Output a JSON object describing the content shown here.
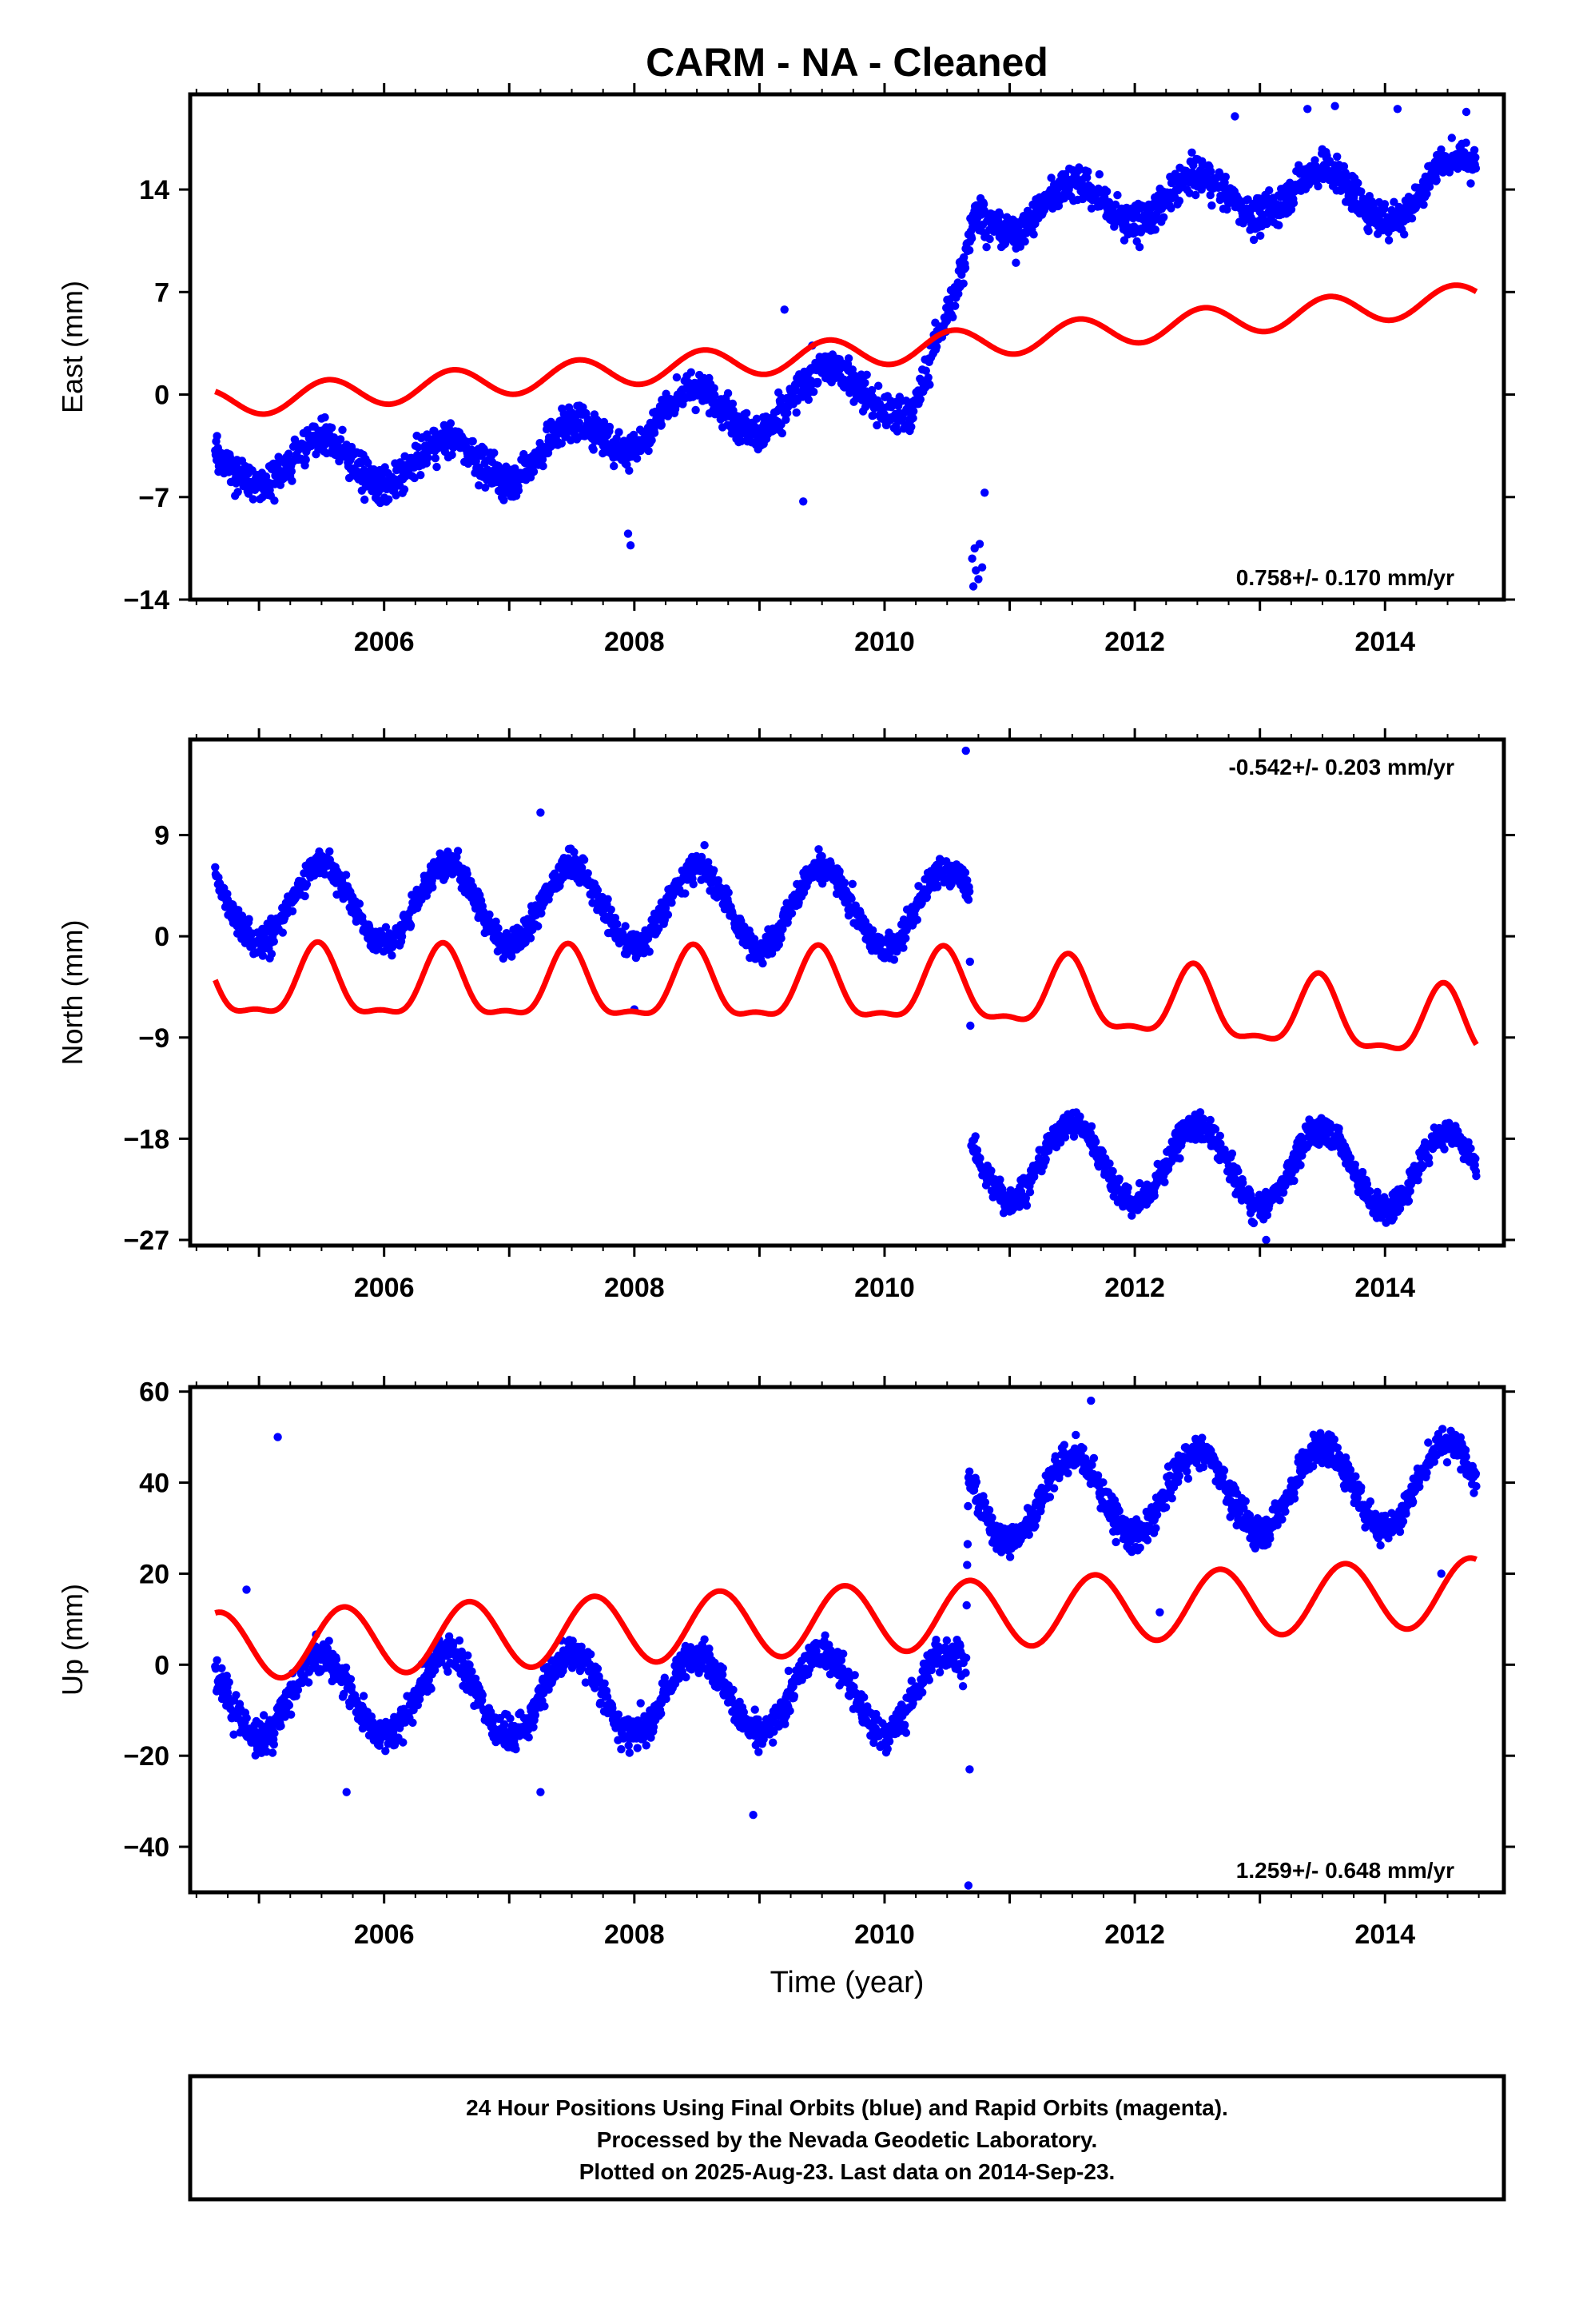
{
  "figure": {
    "title": "CARM  - NA - Cleaned",
    "xlabel": "Time (year)",
    "caption": [
      "24 Hour Positions Using Final Orbits (blue) and Rapid Orbits (magenta).",
      "Processed by the Nevada Geodetic Laboratory.",
      "Plotted on 2025-Aug-23. Last data on 2014-Sep-23."
    ]
  },
  "chart_data": [
    {
      "type": "scatter",
      "id": "east",
      "ylabel": "East (mm)",
      "xlim": [
        2004.45,
        2014.95
      ],
      "ylim": [
        -14,
        20.5
      ],
      "yticks": [
        14,
        7,
        0,
        -7,
        -14
      ],
      "xticks": [
        2006,
        2008,
        2010,
        2012,
        2014
      ],
      "rate_text": "0.758+/- 0.170 mm/yr",
      "rate_position": "bottom-right",
      "grid": false,
      "colors": {
        "points": "#0000ff",
        "model": "#ff0000"
      },
      "series": [
        {
          "kind": "daily-positions",
          "x_range": [
            2004.65,
            2014.73
          ],
          "anchors": [
            [
              2004.65,
              -4.8
            ],
            [
              2005.3,
              -4.5
            ],
            [
              2006.0,
              -4.7
            ],
            [
              2007.0,
              -4.4
            ],
            [
              2007.9,
              -2.6
            ],
            [
              2008.2,
              -1.0
            ],
            [
              2009.0,
              -1.2
            ],
            [
              2009.8,
              1.1
            ],
            [
              2010.25,
              -0.8
            ],
            [
              2010.58,
              5.5
            ],
            [
              2010.72,
              12.3
            ],
            [
              2011.5,
              13.0
            ],
            [
              2012.5,
              13.4
            ],
            [
              2013.5,
              14.0
            ],
            [
              2014.2,
              13.2
            ],
            [
              2014.73,
              15.5
            ]
          ],
          "seasonal_amplitude": 1.5,
          "scatter": 1.2,
          "outliers": [
            [
              2010.72,
              -10.5
            ],
            [
              2010.7,
              -11.2
            ],
            [
              2010.73,
              -12.0
            ],
            [
              2010.75,
              -12.6
            ],
            [
              2010.71,
              -13.1
            ],
            [
              2010.78,
              -11.8
            ],
            [
              2010.76,
              -10.2
            ],
            [
              2010.8,
              -6.7
            ],
            [
              2009.2,
              5.8
            ],
            [
              2007.95,
              -9.5
            ],
            [
              2007.97,
              -10.3
            ],
            [
              2013.38,
              19.5
            ],
            [
              2013.6,
              19.7
            ],
            [
              2014.1,
              19.5
            ],
            [
              2014.65,
              19.3
            ],
            [
              2012.8,
              19.0
            ],
            [
              2009.35,
              -7.3
            ],
            [
              2011.05,
              9.0
            ]
          ]
        },
        {
          "kind": "model",
          "anchors": [
            [
              2004.65,
              -0.6
            ],
            [
              2010.7,
              3.5
            ],
            [
              2014.73,
              6.6
            ]
          ],
          "seasonal_amplitude": 1.0,
          "peak_phase": 0.55
        }
      ]
    },
    {
      "type": "scatter",
      "id": "north",
      "ylabel": "North (mm)",
      "xlim": [
        2004.45,
        2014.95
      ],
      "ylim": [
        -27.5,
        17.5
      ],
      "yticks": [
        9,
        0,
        -9,
        -18,
        -27
      ],
      "xticks": [
        2006,
        2008,
        2010,
        2012,
        2014
      ],
      "rate_text": "-0.542+/- 0.203 mm/yr",
      "rate_position": "top-right",
      "grid": false,
      "colors": {
        "points": "#0000ff",
        "model": "#ff0000"
      },
      "series": [
        {
          "kind": "daily-positions",
          "x_range": [
            2004.65,
            2014.73
          ],
          "anchors": [
            [
              2004.65,
              3.0
            ],
            [
              2010.68,
              2.4
            ],
            [
              2010.69,
              -19.8
            ],
            [
              2014.73,
              -21.0
            ]
          ],
          "seasonal_amplitude": 3.5,
          "scatter": 1.2,
          "outliers": [
            [
              2010.65,
              16.5
            ],
            [
              2007.25,
              11.0
            ],
            [
              2013.05,
              -27.0
            ],
            [
              2012.95,
              -25.5
            ],
            [
              2008.0,
              -6.5
            ]
          ]
        },
        {
          "kind": "model",
          "anchors": [
            [
              2004.65,
              -4.5
            ],
            [
              2010.68,
              -4.9
            ],
            [
              2014.73,
              -8.4
            ]
          ],
          "seasonal_amplitude": 3.0,
          "peak_phase": 0.47,
          "second_harmonic": true
        }
      ]
    },
    {
      "type": "scatter",
      "id": "up",
      "ylabel": "Up (mm)",
      "xlim": [
        2004.45,
        2014.95
      ],
      "ylim": [
        -50,
        61
      ],
      "yticks": [
        60,
        40,
        20,
        0,
        -20,
        -40
      ],
      "xticks": [
        2006,
        2008,
        2010,
        2012,
        2014
      ],
      "rate_text": "1.259+/- 0.648 mm/yr",
      "rate_position": "bottom-right",
      "grid": false,
      "colors": {
        "points": "#0000ff",
        "model": "#ff0000"
      },
      "series": [
        {
          "kind": "daily-positions",
          "x_range": [
            2004.65,
            2014.73
          ],
          "anchors": [
            [
              2004.65,
              -7.0
            ],
            [
              2010.65,
              -6.0
            ],
            [
              2010.67,
              36.0
            ],
            [
              2014.73,
              40.0
            ]
          ],
          "seasonal_amplitude": 9.0,
          "scatter": 3.5,
          "outliers": [
            [
              2005.15,
              50.0
            ],
            [
              2010.67,
              -48.5
            ],
            [
              2010.68,
              -23.0
            ],
            [
              2008.95,
              -33.0
            ],
            [
              2005.7,
              -28.0
            ],
            [
              2007.25,
              -28.0
            ],
            [
              2004.9,
              16.5
            ],
            [
              2011.65,
              58.0
            ],
            [
              2014.45,
              20.0
            ],
            [
              2012.2,
              11.5
            ]
          ]
        },
        {
          "kind": "model",
          "anchors": [
            [
              2004.65,
              4.0
            ],
            [
              2010.67,
              11.0
            ],
            [
              2014.73,
              16.0
            ]
          ],
          "seasonal_amplitude": 7.5,
          "peak_phase": 0.68
        }
      ]
    }
  ]
}
